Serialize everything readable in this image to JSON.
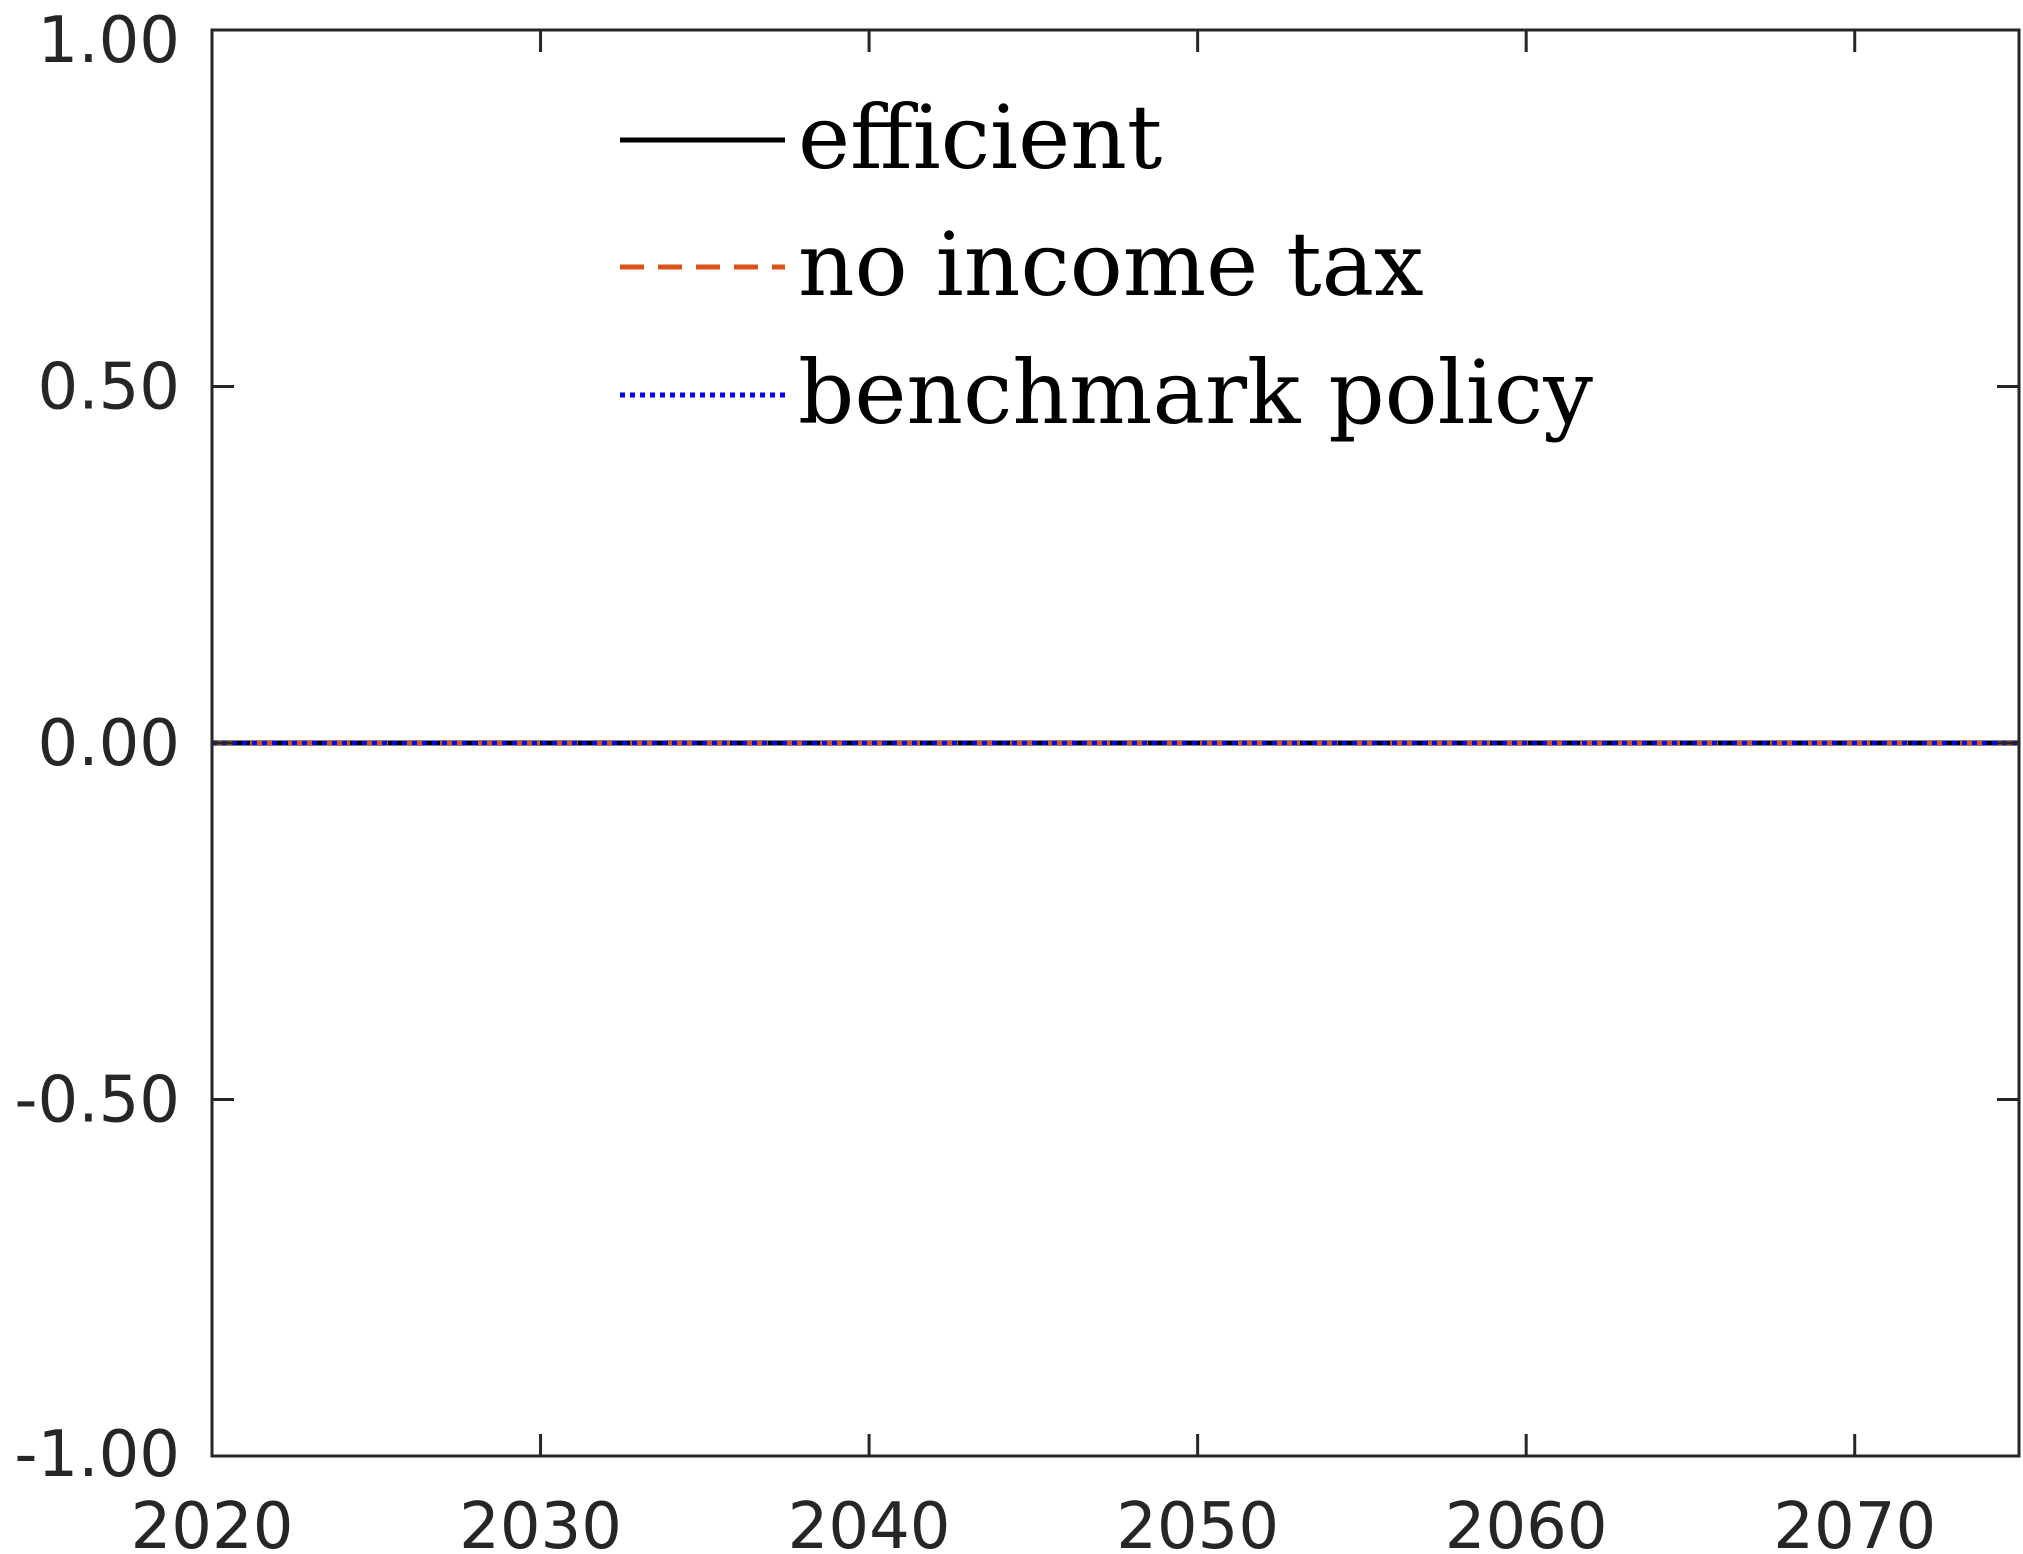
{
  "chart_data": {
    "type": "line",
    "title": "",
    "xlabel": "",
    "ylabel": "",
    "xlim": [
      2020,
      2075
    ],
    "ylim": [
      -1.0,
      1.0
    ],
    "x_ticks": [
      2020,
      2030,
      2040,
      2050,
      2060,
      2070
    ],
    "x_tick_labels": [
      "2020",
      "2030",
      "2040",
      "2050",
      "2060",
      "2070"
    ],
    "y_ticks": [
      -1.0,
      -0.5,
      0.0,
      0.5,
      1.0
    ],
    "y_tick_labels": [
      "-1.00",
      "-0.50",
      "0.00",
      "0.50",
      "1.00"
    ],
    "grid": false,
    "legend_position": "top-center",
    "x": [
      2020,
      2025,
      2030,
      2035,
      2040,
      2045,
      2050,
      2055,
      2060,
      2065,
      2070,
      2075
    ],
    "series": [
      {
        "name": "efficient",
        "color": "#000000",
        "style": "solid",
        "values": [
          0,
          0,
          0,
          0,
          0,
          0,
          0,
          0,
          0,
          0,
          0,
          0
        ]
      },
      {
        "name": "no income tax",
        "color": "#D95319",
        "style": "dashed",
        "values": [
          0,
          0,
          0,
          0,
          0,
          0,
          0,
          0,
          0,
          0,
          0,
          0
        ]
      },
      {
        "name": "benchmark policy",
        "color": "#0000FF",
        "style": "dotted",
        "values": [
          0,
          0,
          0,
          0,
          0,
          0,
          0,
          0,
          0,
          0,
          0,
          0
        ]
      }
    ]
  }
}
